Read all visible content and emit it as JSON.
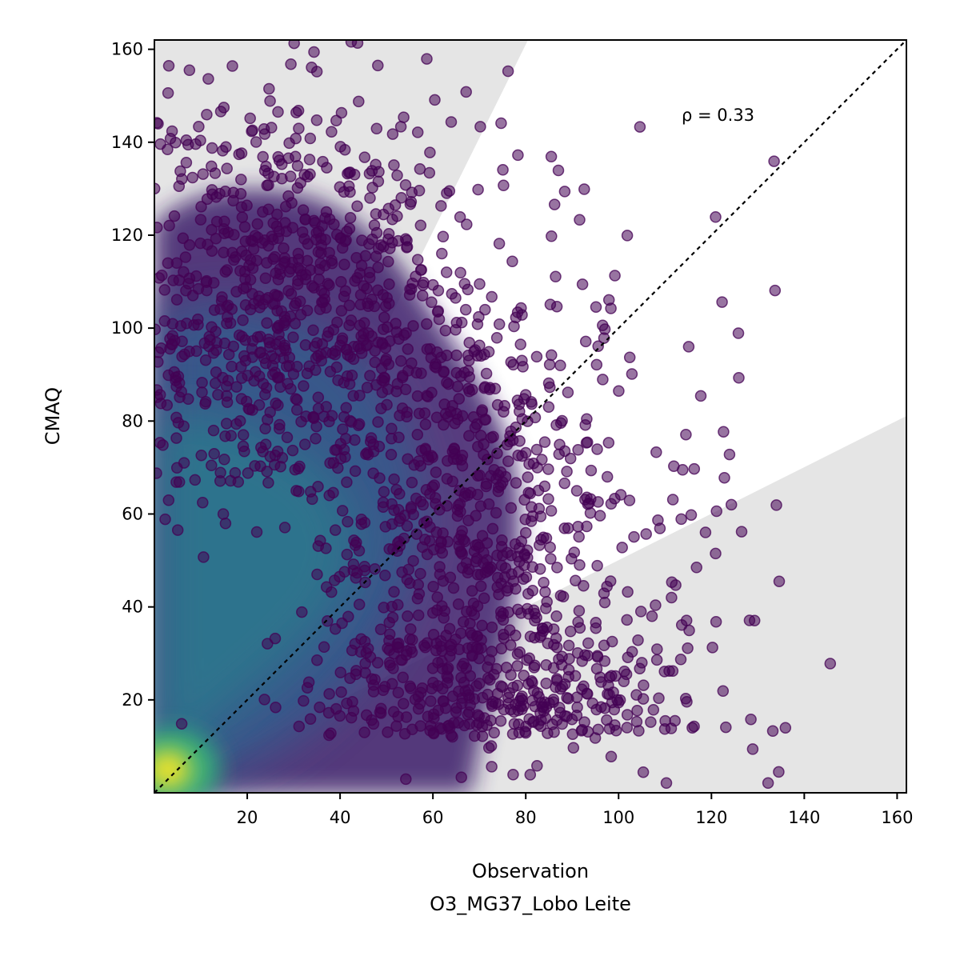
{
  "chart_data": {
    "type": "scatter",
    "title": "",
    "xlabel": "Observation",
    "xlabel_sub": "O3_MG37_Lobo Leite",
    "ylabel": "CMAQ",
    "xlim": [
      0,
      162
    ],
    "ylim": [
      0,
      162
    ],
    "x_ticks": [
      "20",
      "40",
      "60",
      "80",
      "100",
      "120",
      "140",
      "160"
    ],
    "y_ticks": [
      "20",
      "40",
      "60",
      "80",
      "100",
      "120",
      "140",
      "160"
    ],
    "annotation": "ρ = 0.33",
    "reference_line": "y = x (dotted)",
    "shaded_regions": "outside factor-of-2 band",
    "colormap": "viridis (point density)",
    "grid": false,
    "legend": "none",
    "colors": {
      "point_low_density": "#440154",
      "point_mid_density": "#21918c",
      "point_high_density": "#fde725",
      "shade": "#e5e5e5"
    },
    "highlighted_points": [
      {
        "x": 104.6,
        "y": 143.3
      },
      {
        "x": 133.5,
        "y": 135.9
      },
      {
        "x": 120.9,
        "y": 123.9
      },
      {
        "x": 133.7,
        "y": 108.1
      },
      {
        "x": 122.3,
        "y": 105.6
      },
      {
        "x": 125.8,
        "y": 98.9
      },
      {
        "x": 115.1,
        "y": 96.0
      },
      {
        "x": 102.4,
        "y": 93.7
      },
      {
        "x": 125.9,
        "y": 89.3
      },
      {
        "x": 117.7,
        "y": 85.4
      },
      {
        "x": 122.6,
        "y": 77.7
      },
      {
        "x": 114.5,
        "y": 77.1
      },
      {
        "x": 123.9,
        "y": 72.8
      },
      {
        "x": 111.9,
        "y": 70.3
      },
      {
        "x": 116.3,
        "y": 69.7
      },
      {
        "x": 113.8,
        "y": 69.5
      },
      {
        "x": 122.8,
        "y": 67.8
      },
      {
        "x": 111.7,
        "y": 63.1
      },
      {
        "x": 134.0,
        "y": 61.9
      },
      {
        "x": 124.3,
        "y": 62.0
      },
      {
        "x": 121.1,
        "y": 60.6
      },
      {
        "x": 113.5,
        "y": 58.9
      },
      {
        "x": 126.5,
        "y": 56.2
      },
      {
        "x": 108.9,
        "y": 56.9
      },
      {
        "x": 120.9,
        "y": 51.5
      },
      {
        "x": 116.8,
        "y": 48.5
      },
      {
        "x": 134.6,
        "y": 45.5
      },
      {
        "x": 112.3,
        "y": 44.7
      },
      {
        "x": 111.4,
        "y": 42.0
      },
      {
        "x": 107.2,
        "y": 38.0
      },
      {
        "x": 121.0,
        "y": 36.8
      },
      {
        "x": 113.6,
        "y": 36.1
      },
      {
        "x": 128.2,
        "y": 37.1
      },
      {
        "x": 113.4,
        "y": 28.7
      },
      {
        "x": 109.9,
        "y": 26.1
      },
      {
        "x": 101.7,
        "y": 25.5
      },
      {
        "x": 122.5,
        "y": 21.9
      },
      {
        "x": 128.5,
        "y": 15.8
      },
      {
        "x": 114.7,
        "y": 19.6
      },
      {
        "x": 104.0,
        "y": 17.7
      },
      {
        "x": 123.1,
        "y": 14.1
      },
      {
        "x": 128.9,
        "y": 9.4
      },
      {
        "x": 98.4,
        "y": 7.8
      },
      {
        "x": 134.5,
        "y": 4.5
      },
      {
        "x": 132.2,
        "y": 2.1
      },
      {
        "x": 110.3,
        "y": 2.1
      },
      {
        "x": 103.9,
        "y": 15.3
      },
      {
        "x": 105.0,
        "y": 28.0
      },
      {
        "x": 101.8,
        "y": 37.2
      },
      {
        "x": 97.5,
        "y": 44.4
      },
      {
        "x": 88.4,
        "y": 129.4
      },
      {
        "x": 92.6,
        "y": 129.9
      },
      {
        "x": 85.5,
        "y": 136.9
      },
      {
        "x": 86.2,
        "y": 126.6
      },
      {
        "x": 91.6,
        "y": 123.3
      },
      {
        "x": 99.2,
        "y": 111.3
      },
      {
        "x": 74.7,
        "y": 144.1
      },
      {
        "x": 60.4,
        "y": 149.1
      },
      {
        "x": 35.0,
        "y": 155.2
      },
      {
        "x": 16.8,
        "y": 156.4
      },
      {
        "x": 30.1,
        "y": 161.3
      },
      {
        "x": 42.4,
        "y": 161.6
      },
      {
        "x": 1.3,
        "y": 139.6
      },
      {
        "x": 8.9,
        "y": 139.6
      }
    ]
  }
}
